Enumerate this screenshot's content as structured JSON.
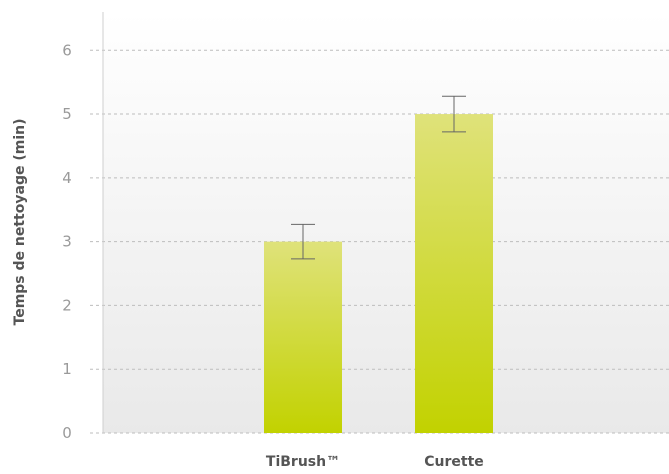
{
  "chart_data": {
    "type": "bar",
    "title": "",
    "xlabel": "",
    "ylabel": "Temps de nettoyage (min)",
    "categories": [
      "TiBrush™",
      "Curette"
    ],
    "values": [
      3.0,
      5.0
    ],
    "error": [
      0.27,
      0.28
    ],
    "ylim": [
      0,
      6.6
    ],
    "yticks": [
      0,
      1,
      2,
      3,
      4,
      5,
      6
    ],
    "grid": true,
    "legend": "none",
    "colors": {
      "bar_top": "#dfe27a",
      "bar_bottom": "#c2d200",
      "plot_bg_top": "#ffffff",
      "plot_bg_bottom": "#e9e9e9",
      "error_bar": "#666666"
    }
  }
}
